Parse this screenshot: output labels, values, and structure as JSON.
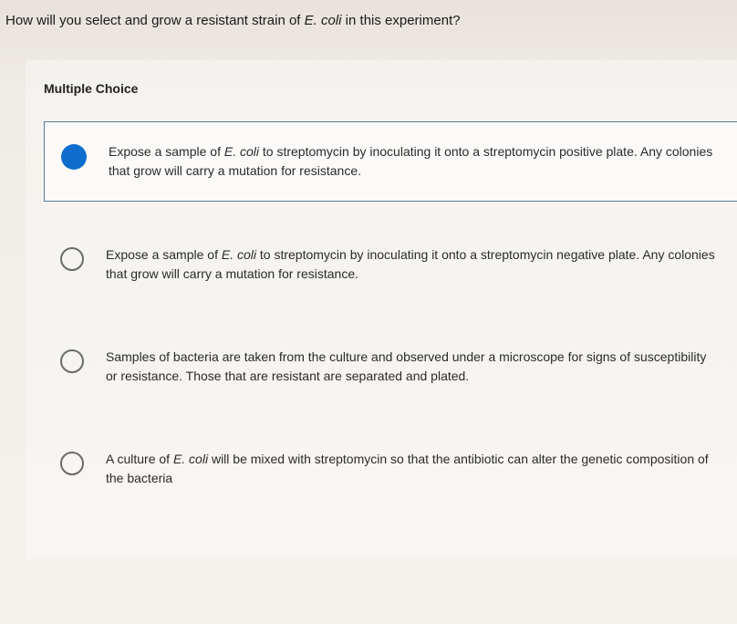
{
  "question": {
    "prefix": "How will you select and grow a resistant strain of ",
    "ital": "E. coli",
    "suffix": " in this experiment?"
  },
  "mc_label": "Multiple Choice",
  "options": [
    {
      "selected": true,
      "pre": "Expose a sample of ",
      "ital": "E. coli",
      "post": " to streptomycin by inoculating it onto a streptomycin positive plate. Any colonies that grow will carry a mutation for resistance."
    },
    {
      "selected": false,
      "pre": "Expose a sample of ",
      "ital": "E. coli",
      "post": " to streptomycin by inoculating it onto a streptomycin negative plate. Any colonies that grow will carry a mutation for resistance."
    },
    {
      "selected": false,
      "pre": "",
      "ital": "",
      "post": "Samples of bacteria are taken from the culture and observed under a microscope for signs of susceptibility or resistance. Those that are resistant are separated and plated."
    },
    {
      "selected": false,
      "pre": "A culture of ",
      "ital": "E. coli",
      "post": " will be mixed with streptomycin so that the antibiotic can alter the genetic composition of the bacteria"
    }
  ],
  "colors": {
    "selected_border": "#5b7a99",
    "radio_fill": "#0f6ecd",
    "radio_ring": "#6b6b6b"
  }
}
